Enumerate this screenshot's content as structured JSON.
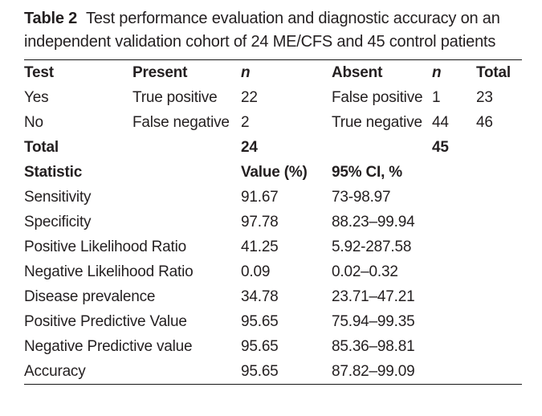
{
  "caption": {
    "label": "Table 2",
    "text": "Test performance evaluation and diagnostic accuracy on an independent validation cohort of 24 ME/CFS and 45 control patients"
  },
  "contingency": {
    "header": {
      "test": "Test",
      "present": "Present",
      "n_present": "n",
      "absent": "Absent",
      "n_absent": "n",
      "total": "Total"
    },
    "rows": [
      {
        "test": "Yes",
        "present": "True positive",
        "n_present": "22",
        "absent": "False positive",
        "n_absent": "1",
        "total": "23"
      },
      {
        "test": "No",
        "present": "False negative",
        "n_present": "2",
        "absent": "True negative",
        "n_absent": "44",
        "total": "46"
      },
      {
        "test": "Total",
        "present": "",
        "n_present": "24",
        "absent": "",
        "n_absent": "45",
        "total": ""
      }
    ]
  },
  "statistics": {
    "header": {
      "statistic": "Statistic",
      "value": "Value (%)",
      "ci": "95% CI, %"
    },
    "rows": [
      {
        "statistic": "Sensitivity",
        "value": "91.67",
        "ci": "73-98.97"
      },
      {
        "statistic": "Specificity",
        "value": "97.78",
        "ci": "88.23–99.94"
      },
      {
        "statistic": "Positive Likelihood Ratio",
        "value": "41.25",
        "ci": "5.92-287.58"
      },
      {
        "statistic": "Negative Likelihood Ratio",
        "value": "0.09",
        "ci": "0.02–0.32"
      },
      {
        "statistic": "Disease prevalence",
        "value": "34.78",
        "ci": "23.71–47.21"
      },
      {
        "statistic": "Positive Predictive Value",
        "value": "95.65",
        "ci": "75.94–99.35"
      },
      {
        "statistic": "Negative Predictive value",
        "value": "95.65",
        "ci": "85.36–98.81"
      },
      {
        "statistic": "Accuracy",
        "value": "95.65",
        "ci": "87.82–99.09"
      }
    ]
  },
  "colors": {
    "text": "#231f20",
    "rule": "#161616",
    "background": "#ffffff"
  }
}
